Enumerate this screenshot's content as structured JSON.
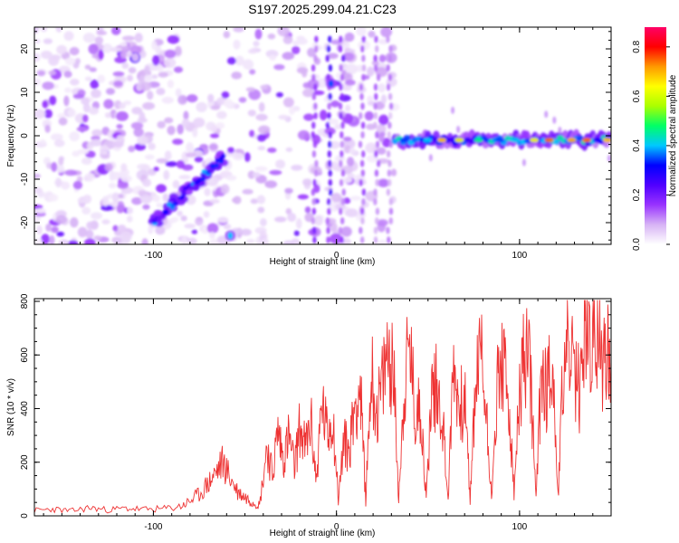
{
  "chart_data": [
    {
      "type": "heatmap",
      "title": "S197.2025.299.04.21.C23",
      "xlabel": "Height of straight line (km)",
      "ylabel": "Frequency (Hz)",
      "xlim": [
        -165,
        150
      ],
      "ylim": [
        -25,
        25
      ],
      "x_ticks": [
        -100,
        0,
        100
      ],
      "y_ticks": [
        -20,
        -10,
        0,
        10,
        20
      ],
      "colorbar": {
        "label": "Normalized spectral amplitude",
        "range": [
          0.0,
          0.88
        ],
        "ticks": [
          "0.0",
          "0.2",
          "0.4",
          "0.6",
          "0.8"
        ],
        "colormap": [
          "#ffffff",
          "#d7b3f5",
          "#9933ff",
          "#5000ff",
          "#0000ff",
          "#00c8ff",
          "#00ff66",
          "#aaff00",
          "#ffff00",
          "#ff9900",
          "#ff0000",
          "#ff0066"
        ]
      },
      "features": [
        {
          "kind": "diagonal-track",
          "x_start": -100,
          "y_start": -20,
          "x_end": -62,
          "y_end": -5,
          "peak_amplitude": 0.4
        },
        {
          "kind": "spot",
          "x": -58,
          "y": -23,
          "amplitude": 0.4
        },
        {
          "kind": "spot",
          "x": -3,
          "y": 12,
          "amplitude": 0.35
        },
        {
          "kind": "horizontal-band",
          "x_start": 32,
          "x_end": 150,
          "y": -1,
          "peak_amplitude": 0.86
        }
      ]
    },
    {
      "type": "line",
      "xlabel": "Height of straight line (km)",
      "ylabel": "SNR (10 * v/v)",
      "xlim": [
        -165,
        150
      ],
      "ylim": [
        0,
        810
      ],
      "x_ticks": [
        -100,
        0,
        100
      ],
      "y_ticks": [
        0,
        200,
        400,
        600,
        800
      ],
      "line_color": "#ee3333",
      "x": [
        -165,
        -155,
        -145,
        -135,
        -125,
        -115,
        -105,
        -95,
        -85,
        -80,
        -75,
        -70,
        -66,
        -62,
        -58,
        -54,
        -50,
        -46,
        -42,
        -38,
        -35,
        -32,
        -29,
        -26,
        -23,
        -20,
        -17,
        -14,
        -11,
        -8,
        -5,
        -2,
        1,
        4,
        7,
        10,
        13,
        16,
        19,
        22,
        25,
        28,
        31,
        34,
        37,
        40,
        43,
        46,
        49,
        52,
        55,
        58,
        61,
        64,
        67,
        70,
        73,
        76,
        79,
        82,
        85,
        88,
        91,
        94,
        97,
        100,
        103,
        106,
        109,
        112,
        115,
        118,
        121,
        124,
        127,
        130,
        133,
        136,
        139,
        142,
        145,
        148,
        150
      ],
      "y": [
        20,
        25,
        18,
        30,
        22,
        28,
        24,
        26,
        35,
        55,
        80,
        120,
        160,
        200,
        140,
        90,
        70,
        55,
        40,
        260,
        150,
        320,
        210,
        300,
        180,
        330,
        250,
        350,
        130,
        420,
        300,
        380,
        60,
        280,
        240,
        420,
        470,
        60,
        540,
        380,
        480,
        610,
        560,
        70,
        470,
        640,
        360,
        420,
        60,
        470,
        480,
        360,
        60,
        580,
        400,
        440,
        60,
        490,
        620,
        360,
        70,
        510,
        560,
        420,
        80,
        450,
        610,
        520,
        60,
        550,
        470,
        600,
        70,
        560,
        640,
        500,
        470,
        720,
        620,
        690,
        560,
        660,
        580
      ]
    }
  ]
}
